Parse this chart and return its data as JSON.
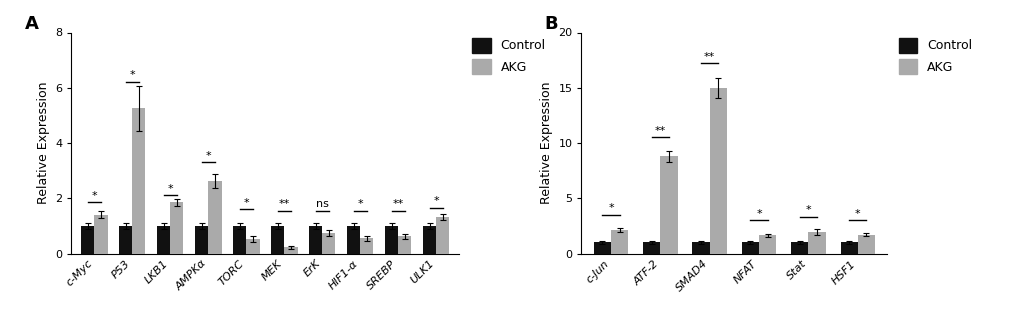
{
  "panel_A": {
    "categories": [
      "c-Myc",
      "P53",
      "LKB1",
      "AMPKα",
      "TORC",
      "MEK",
      "ErK",
      "HIF1-α",
      "SREBP",
      "ULK1"
    ],
    "control_vals": [
      1.0,
      1.0,
      1.0,
      1.0,
      1.0,
      1.0,
      1.0,
      1.0,
      1.0,
      1.0
    ],
    "akg_vals": [
      1.4,
      5.25,
      1.85,
      2.62,
      0.52,
      0.22,
      0.75,
      0.55,
      0.62,
      1.32
    ],
    "control_err": [
      0.12,
      0.1,
      0.1,
      0.1,
      0.12,
      0.12,
      0.1,
      0.1,
      0.1,
      0.12
    ],
    "akg_err": [
      0.13,
      0.8,
      0.12,
      0.25,
      0.12,
      0.05,
      0.1,
      0.08,
      0.1,
      0.12
    ],
    "significance": [
      "*",
      "*",
      "*",
      "*",
      "*",
      "**",
      "ns",
      "*",
      "**",
      "*"
    ],
    "sig_line_y": [
      1.85,
      6.2,
      2.1,
      3.3,
      1.6,
      1.55,
      1.55,
      1.55,
      1.55,
      1.65
    ],
    "ylim": [
      0,
      8
    ],
    "yticks": [
      0,
      2,
      4,
      6,
      8
    ],
    "ylabel": "Relative Expression",
    "panel_label": "A"
  },
  "panel_B": {
    "categories": [
      "c-Jun",
      "ATF-2",
      "SMAD4",
      "NFAT",
      "Stat",
      "HSF1"
    ],
    "control_vals": [
      1.0,
      1.0,
      1.0,
      1.0,
      1.0,
      1.0
    ],
    "akg_vals": [
      2.1,
      8.8,
      15.0,
      1.65,
      1.95,
      1.7
    ],
    "control_err": [
      0.12,
      0.1,
      0.1,
      0.1,
      0.1,
      0.12
    ],
    "akg_err": [
      0.18,
      0.5,
      0.9,
      0.12,
      0.25,
      0.15
    ],
    "significance": [
      "*",
      "**",
      "**",
      "*",
      "*",
      "*"
    ],
    "sig_line_y": [
      3.5,
      10.5,
      17.2,
      3.0,
      3.3,
      3.0
    ],
    "ylim": [
      0,
      20
    ],
    "yticks": [
      0,
      5,
      10,
      15,
      20
    ],
    "ylabel": "Relative Expression",
    "panel_label": "B"
  },
  "control_color": "#111111",
  "akg_color": "#aaaaaa",
  "bar_width": 0.35,
  "legend_labels": [
    "Control",
    "AKG"
  ],
  "tick_fontsize": 8,
  "label_fontsize": 9,
  "legend_fontsize": 9,
  "panel_label_fontsize": 13,
  "sig_fontsize": 8
}
